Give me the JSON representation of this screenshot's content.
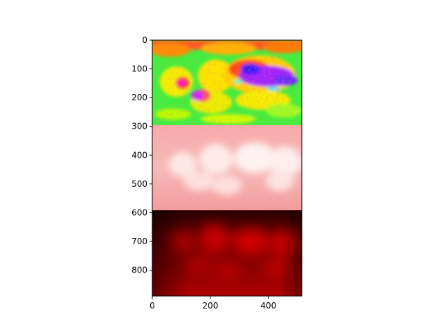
{
  "chart_data": {
    "type": "heatmap",
    "title": "",
    "xlabel": "",
    "ylabel": "",
    "xlim": [
      0,
      515
    ],
    "ylim": [
      890,
      0
    ],
    "x_ticks": [
      {
        "value": 0,
        "label": "0"
      },
      {
        "value": 200,
        "label": "200"
      },
      {
        "value": 400,
        "label": "400"
      }
    ],
    "y_ticks": [
      {
        "value": 0,
        "label": "0"
      },
      {
        "value": 100,
        "label": "100"
      },
      {
        "value": 200,
        "label": "200"
      },
      {
        "value": 300,
        "label": "300"
      },
      {
        "value": 400,
        "label": "400"
      },
      {
        "value": 500,
        "label": "500"
      },
      {
        "value": 600,
        "label": "600"
      },
      {
        "value": 700,
        "label": "700"
      },
      {
        "value": 800,
        "label": "800"
      }
    ],
    "panels": [
      {
        "name": "hsv-colormap-panel",
        "y_range": [
          0,
          297
        ],
        "colormap": "hsv"
      },
      {
        "name": "pink-white-colormap-panel",
        "y_range": [
          297,
          593
        ],
        "colormap": "white-red"
      },
      {
        "name": "black-red-colormap-panel",
        "y_range": [
          593,
          890
        ],
        "colormap": "black-red"
      }
    ],
    "grid": false,
    "legend": "none"
  }
}
